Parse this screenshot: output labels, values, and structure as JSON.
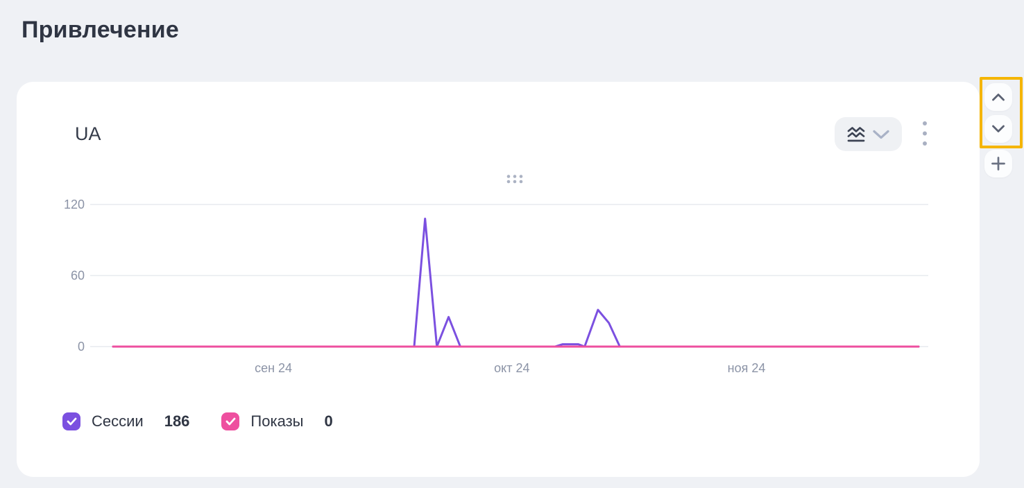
{
  "page": {
    "title": "Привлечение"
  },
  "widget": {
    "title": "UA",
    "controls": {
      "chart_type_button": "chart-type-selector",
      "menu_button": "more-options"
    }
  },
  "legend": [
    {
      "label": "Сессии",
      "value": "186",
      "color": "#7b50e0",
      "checked": true
    },
    {
      "label": "Показы",
      "value": "0",
      "color": "#ee4f9f",
      "checked": true
    }
  ],
  "side_controls": {
    "up": "move-widget-up",
    "down": "move-widget-down",
    "add": "add-widget",
    "highlight_color": "#f5b500"
  },
  "colors": {
    "background": "#eff1f5",
    "card": "#ffffff",
    "sessions_line": "#7b50e0",
    "impressions_line": "#ee4f9f",
    "axis_text": "#8b93a6",
    "gridline": "#e7eaef",
    "annotation": "#f5b500"
  },
  "chart_data": {
    "type": "line",
    "title": "UA",
    "grid": true,
    "legend_position": "bottom",
    "x_domain_days": [
      0,
      103
    ],
    "x_ticks": [
      {
        "label": "сен 24",
        "day": 20.5
      },
      {
        "label": "окт 24",
        "day": 51
      },
      {
        "label": "ноя 24",
        "day": 81
      }
    ],
    "y_ticks": [
      0,
      60,
      120
    ],
    "ylim": [
      0,
      128
    ],
    "series": [
      {
        "name": "Сессии",
        "color": "#7b50e0",
        "total": 186,
        "points": [
          [
            0,
            0
          ],
          [
            38.5,
            0
          ],
          [
            39.9,
            108
          ],
          [
            41.4,
            0
          ],
          [
            42.9,
            25
          ],
          [
            44.4,
            0
          ],
          [
            56.5,
            0
          ],
          [
            57.5,
            2
          ],
          [
            59.5,
            2
          ],
          [
            60.3,
            0
          ],
          [
            62,
            31
          ],
          [
            63.4,
            20
          ],
          [
            64.8,
            0
          ],
          [
            103,
            0
          ]
        ]
      },
      {
        "name": "Показы",
        "color": "#ee4f9f",
        "total": 0,
        "points": [
          [
            0,
            0
          ],
          [
            103,
            0
          ]
        ]
      }
    ]
  }
}
